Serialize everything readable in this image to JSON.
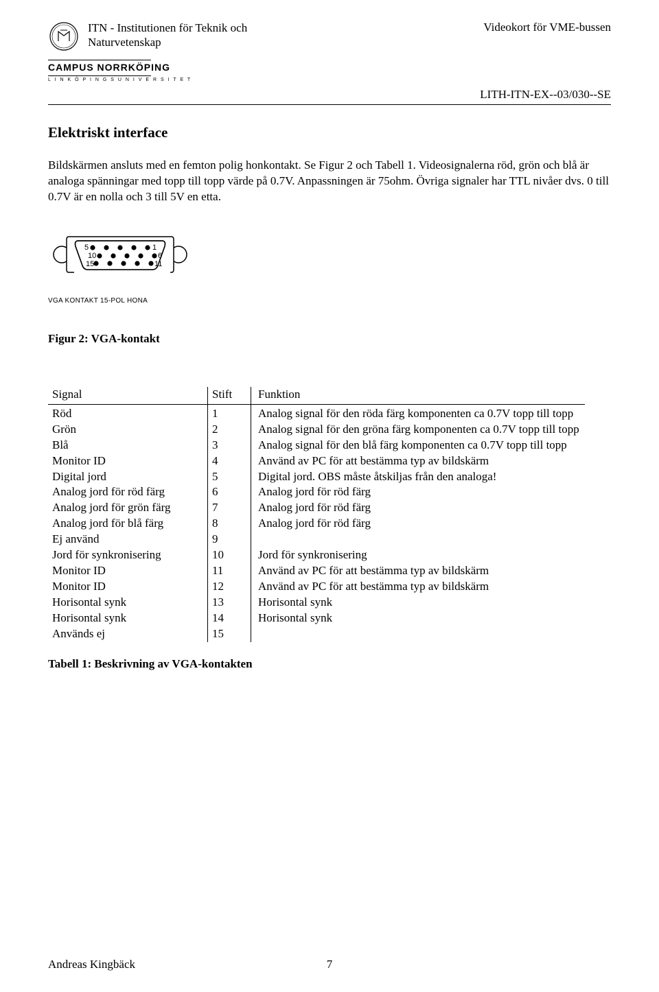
{
  "header": {
    "institution_line1": "ITN - Institutionen för Teknik och",
    "institution_line2": "Naturvetenskap",
    "doc_title": "Videokort för VME-bussen",
    "campus_main": "CAMPUS NORRKÖPING",
    "campus_sub": "L I N K Ö P I N G S  U N I V E R S I T E T",
    "doc_id": "LITH-ITN-EX--03/030--SE"
  },
  "section_title": "Elektriskt interface",
  "body_text": "Bildskärmen ansluts med en femton polig honkontakt. Se Figur 2 och Tabell 1. Videosignalerna röd, grön och blå är analoga spänningar med topp till topp värde på 0.7V. Anpassningen är 75ohm. Övriga signaler har TTL nivåer dvs. 0 till 0.7V är en nolla och 3 till 5V en etta.",
  "connector": {
    "diagram_label": "VGA KONTAKT 15-POL HONA",
    "pin_labels": [
      "5",
      "1",
      "10",
      "6",
      "15",
      "11"
    ],
    "pin_count": 15,
    "rows": [
      5,
      5,
      5
    ],
    "shell_stroke": "#000000",
    "shell_fill": "#ffffff",
    "pin_fill": "#000000"
  },
  "figure_caption": "Figur 2: VGA-kontakt",
  "table": {
    "columns": [
      "Signal",
      "Stift",
      "Funktion"
    ],
    "rows": [
      [
        "Röd",
        "1",
        "Analog signal för den röda färg komponenten ca 0.7V topp till topp"
      ],
      [
        "Grön",
        "2",
        "Analog signal för den gröna färg komponenten ca 0.7V topp till topp"
      ],
      [
        "Blå",
        "3",
        "Analog signal för den blå färg komponenten ca 0.7V topp till topp"
      ],
      [
        "Monitor ID",
        "4",
        "Använd av PC för att bestämma typ av bildskärm"
      ],
      [
        "Digital jord",
        "5",
        "Digital jord. OBS måste åtskiljas från den analoga!"
      ],
      [
        "Analog jord för röd färg",
        "6",
        "Analog jord för röd färg"
      ],
      [
        "Analog jord för grön färg",
        "7",
        "Analog jord för röd färg"
      ],
      [
        "Analog jord för blå färg",
        "8",
        "Analog jord för röd färg"
      ],
      [
        "Ej använd",
        "9",
        ""
      ],
      [
        "Jord för synkronisering",
        "10",
        "Jord för synkronisering"
      ],
      [
        "Monitor ID",
        "11",
        "Använd av PC för att bestämma typ av bildskärm"
      ],
      [
        "Monitor ID",
        "12",
        "Använd av PC för att bestämma typ av bildskärm"
      ],
      [
        "Horisontal synk",
        "13",
        "Horisontal synk"
      ],
      [
        "Horisontal synk",
        "14",
        "Horisontal synk"
      ],
      [
        "Används ej",
        "15",
        ""
      ]
    ],
    "caption": "Tabell 1: Beskrivning av VGA-kontakten"
  },
  "footer": {
    "author": "Andreas Kingbäck",
    "page": "7"
  }
}
